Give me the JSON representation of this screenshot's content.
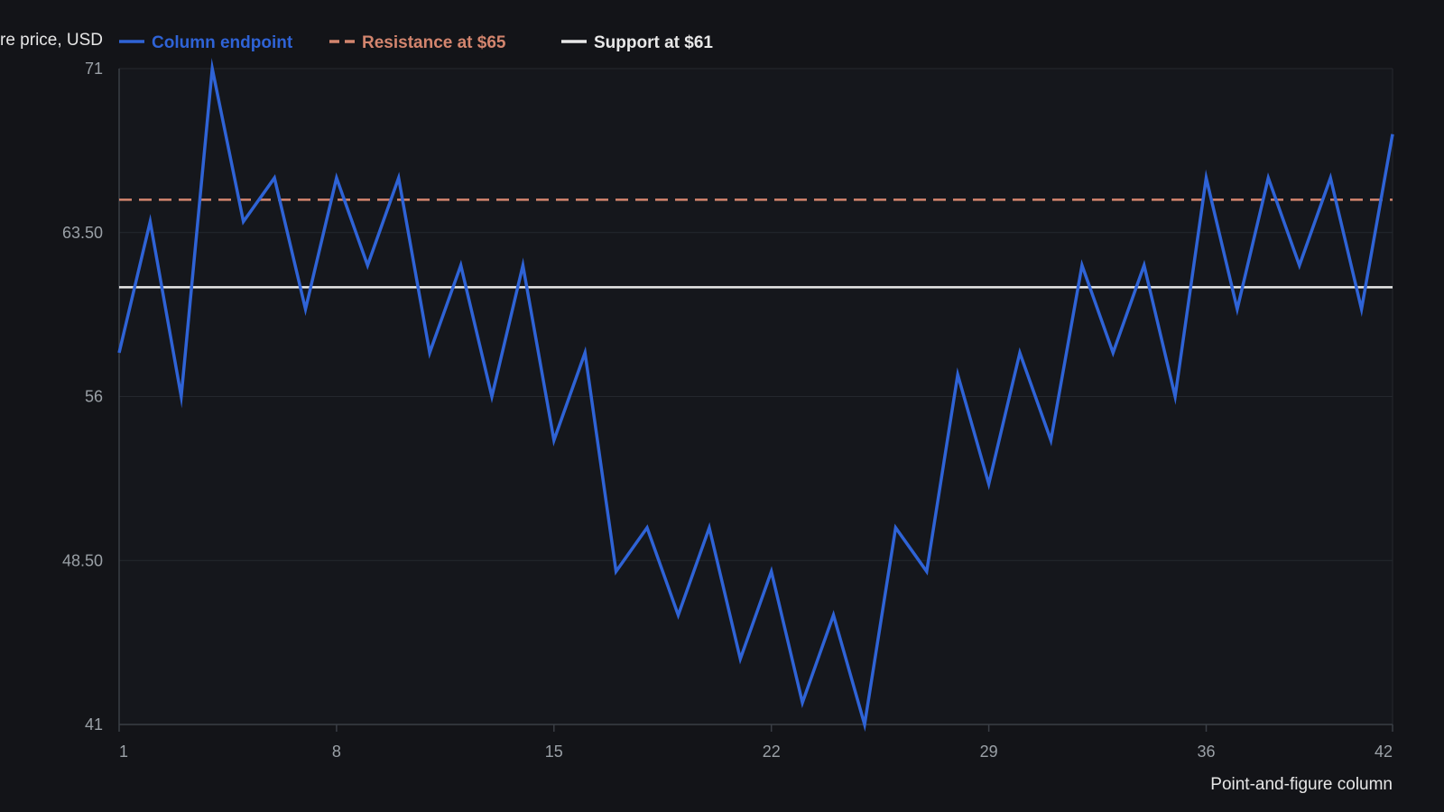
{
  "colors": {
    "background": "#131418",
    "plot_background": "#15171c",
    "grid": "#25282e",
    "axis": "#3a3e45",
    "tick_text": "#9aa0a6",
    "title_text": "#e6e6e6",
    "endpoint_series": "#2f63d6",
    "resistance": "#d3856e",
    "support": "#e8e8e8"
  },
  "chart_data": {
    "type": "line",
    "title": "",
    "xlabel": "Point-and-figure column",
    "ylabel": "re price, USD",
    "xlim": [
      1,
      42
    ],
    "ylim": [
      41,
      71
    ],
    "xticks": [
      "1",
      "8",
      "15",
      "22",
      "29",
      "36",
      "42"
    ],
    "yticks": [
      "41",
      "48.50",
      "56",
      "63.50",
      "71"
    ],
    "grid": true,
    "legend_position": "top-left",
    "series": [
      {
        "name": "Column endpoint",
        "style": "solid",
        "color": "#2f63d6",
        "x": [
          1,
          2,
          3,
          4,
          5,
          6,
          7,
          8,
          9,
          10,
          11,
          12,
          13,
          14,
          15,
          16,
          17,
          18,
          19,
          20,
          21,
          22,
          23,
          24,
          25,
          26,
          27,
          28,
          29,
          30,
          31,
          32,
          33,
          34,
          35,
          36,
          37,
          38,
          39,
          40,
          41,
          42
        ],
        "y": [
          58,
          64,
          56,
          71,
          64,
          66,
          60,
          66,
          62,
          66,
          58,
          62,
          56,
          62,
          54,
          58,
          48,
          50,
          46,
          50,
          44,
          48,
          42,
          46,
          41,
          50,
          48,
          57,
          52,
          58,
          54,
          62,
          58,
          62,
          56,
          66,
          60,
          66,
          62,
          66,
          60,
          68
        ]
      }
    ],
    "reference_lines": [
      {
        "name": "Resistance at $65",
        "style": "dashed",
        "color": "#d3856e",
        "y": 65
      },
      {
        "name": "Support at $61",
        "style": "solid",
        "color": "#e8e8e8",
        "y": 61
      }
    ]
  }
}
